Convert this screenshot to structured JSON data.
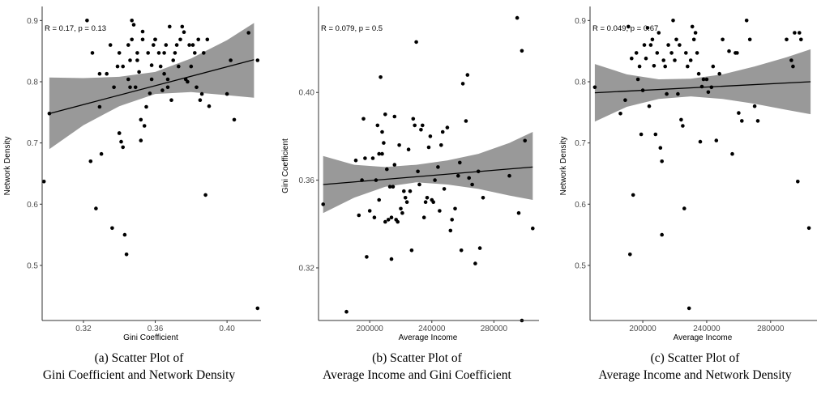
{
  "chart_data": [
    {
      "type": "scatter",
      "title": "",
      "annotation": "R = 0.17, p = 0.13",
      "xlabel": "Gini Coefficient",
      "ylabel": "Network Density",
      "xlim": [
        0.297,
        0.418
      ],
      "ylim": [
        0.41,
        0.915
      ],
      "xticks": [
        0.32,
        0.36,
        0.4
      ],
      "xtick_labels": [
        "0.32",
        "0.36",
        "0.40"
      ],
      "yticks": [
        0.5,
        0.6,
        0.7,
        0.8,
        0.9
      ],
      "ytick_labels": [
        "0.5",
        "0.6",
        "0.7",
        "0.8",
        "0.9"
      ],
      "grid": false,
      "fit": {
        "x0": 0.301,
        "y0": 0.748,
        "x1": 0.415,
        "y1": 0.836
      },
      "ci_band": [
        [
          0.301,
          0.69,
          0.807
        ],
        [
          0.32,
          0.729,
          0.806
        ],
        [
          0.34,
          0.76,
          0.808
        ],
        [
          0.36,
          0.78,
          0.816
        ],
        [
          0.38,
          0.783,
          0.838
        ],
        [
          0.4,
          0.778,
          0.868
        ],
        [
          0.415,
          0.774,
          0.896
        ]
      ],
      "points": [
        [
          0.298,
          0.637
        ],
        [
          0.301,
          0.748
        ],
        [
          0.322,
          0.9
        ],
        [
          0.324,
          0.67
        ],
        [
          0.325,
          0.847
        ],
        [
          0.327,
          0.593
        ],
        [
          0.329,
          0.759
        ],
        [
          0.329,
          0.813
        ],
        [
          0.33,
          0.682
        ],
        [
          0.333,
          0.813
        ],
        [
          0.335,
          0.86
        ],
        [
          0.336,
          0.561
        ],
        [
          0.337,
          0.791
        ],
        [
          0.339,
          0.825
        ],
        [
          0.34,
          0.847
        ],
        [
          0.34,
          0.716
        ],
        [
          0.34,
          0.716
        ],
        [
          0.341,
          0.702
        ],
        [
          0.342,
          0.693
        ],
        [
          0.342,
          0.825
        ],
        [
          0.343,
          0.55
        ],
        [
          0.344,
          0.518
        ],
        [
          0.345,
          0.86
        ],
        [
          0.345,
          0.804
        ],
        [
          0.346,
          0.835
        ],
        [
          0.346,
          0.791
        ],
        [
          0.347,
          0.9
        ],
        [
          0.347,
          0.869
        ],
        [
          0.348,
          0.893
        ],
        [
          0.349,
          0.791
        ],
        [
          0.35,
          0.835
        ],
        [
          0.35,
          0.847
        ],
        [
          0.351,
          0.816
        ],
        [
          0.352,
          0.738
        ],
        [
          0.352,
          0.704
        ],
        [
          0.353,
          0.882
        ],
        [
          0.353,
          0.869
        ],
        [
          0.354,
          0.728
        ],
        [
          0.355,
          0.759
        ],
        [
          0.356,
          0.847
        ],
        [
          0.357,
          0.781
        ],
        [
          0.358,
          0.827
        ],
        [
          0.358,
          0.804
        ],
        [
          0.359,
          0.86
        ],
        [
          0.36,
          0.869
        ],
        [
          0.36,
          0.869
        ],
        [
          0.362,
          0.847
        ],
        [
          0.363,
          0.825
        ],
        [
          0.364,
          0.786
        ],
        [
          0.365,
          0.847
        ],
        [
          0.365,
          0.813
        ],
        [
          0.366,
          0.86
        ],
        [
          0.367,
          0.791
        ],
        [
          0.367,
          0.804
        ],
        [
          0.368,
          0.89
        ],
        [
          0.369,
          0.77
        ],
        [
          0.37,
          0.835
        ],
        [
          0.371,
          0.847
        ],
        [
          0.372,
          0.86
        ],
        [
          0.373,
          0.825
        ],
        [
          0.374,
          0.869
        ],
        [
          0.375,
          0.89
        ],
        [
          0.376,
          0.881
        ],
        [
          0.377,
          0.804
        ],
        [
          0.378,
          0.8
        ],
        [
          0.379,
          0.86
        ],
        [
          0.38,
          0.825
        ],
        [
          0.381,
          0.86
        ],
        [
          0.382,
          0.847
        ],
        [
          0.383,
          0.791
        ],
        [
          0.384,
          0.869
        ],
        [
          0.385,
          0.77
        ],
        [
          0.386,
          0.78
        ],
        [
          0.387,
          0.847
        ],
        [
          0.388,
          0.615
        ],
        [
          0.389,
          0.869
        ],
        [
          0.39,
          0.76
        ],
        [
          0.4,
          0.78
        ],
        [
          0.402,
          0.835
        ],
        [
          0.404,
          0.738
        ],
        [
          0.412,
          0.88
        ],
        [
          0.417,
          0.835
        ],
        [
          0.417,
          0.43
        ]
      ]
    },
    {
      "type": "scatter",
      "title": "",
      "annotation": "R = 0.079, p = 0.5",
      "xlabel": "Average Income",
      "ylabel": "Gini Coefficient",
      "xlim": [
        167000,
        308000
      ],
      "ylim": [
        0.296,
        0.437
      ],
      "xticks": [
        200000,
        240000,
        280000
      ],
      "xtick_labels": [
        "200000",
        "240000",
        "280000"
      ],
      "yticks": [
        0.32,
        0.36,
        0.4
      ],
      "ytick_labels": [
        "0.32",
        "0.36",
        "0.40"
      ],
      "grid": false,
      "fit": {
        "x0": 170000,
        "y0": 0.358,
        "x1": 305000,
        "y1": 0.366
      },
      "ci_band": [
        [
          170000,
          0.345,
          0.371
        ],
        [
          190000,
          0.352,
          0.367
        ],
        [
          210000,
          0.357,
          0.366
        ],
        [
          230000,
          0.359,
          0.367
        ],
        [
          250000,
          0.358,
          0.369
        ],
        [
          270000,
          0.356,
          0.372
        ],
        [
          290000,
          0.353,
          0.377
        ],
        [
          305000,
          0.351,
          0.382
        ]
      ],
      "points": [
        [
          170000,
          0.349
        ],
        [
          185000,
          0.3
        ],
        [
          191000,
          0.369
        ],
        [
          193000,
          0.344
        ],
        [
          195000,
          0.36
        ],
        [
          196000,
          0.388
        ],
        [
          197000,
          0.37
        ],
        [
          198000,
          0.325
        ],
        [
          200000,
          0.346
        ],
        [
          202000,
          0.37
        ],
        [
          203000,
          0.343
        ],
        [
          204000,
          0.36
        ],
        [
          205000,
          0.385
        ],
        [
          206000,
          0.372
        ],
        [
          206000,
          0.351
        ],
        [
          207000,
          0.407
        ],
        [
          208000,
          0.382
        ],
        [
          208000,
          0.372
        ],
        [
          209000,
          0.377
        ],
        [
          210000,
          0.39
        ],
        [
          210000,
          0.341
        ],
        [
          211000,
          0.365
        ],
        [
          212000,
          0.342
        ],
        [
          213000,
          0.357
        ],
        [
          214000,
          0.343
        ],
        [
          214000,
          0.324
        ],
        [
          215000,
          0.357
        ],
        [
          216000,
          0.389
        ],
        [
          216000,
          0.367
        ],
        [
          217000,
          0.342
        ],
        [
          218000,
          0.341
        ],
        [
          219000,
          0.376
        ],
        [
          220000,
          0.347
        ],
        [
          221000,
          0.345
        ],
        [
          222000,
          0.355
        ],
        [
          223000,
          0.352
        ],
        [
          224000,
          0.35
        ],
        [
          225000,
          0.374
        ],
        [
          226000,
          0.355
        ],
        [
          227000,
          0.328
        ],
        [
          228000,
          0.388
        ],
        [
          229000,
          0.385
        ],
        [
          230000,
          0.423
        ],
        [
          231000,
          0.364
        ],
        [
          232000,
          0.358
        ],
        [
          233000,
          0.383
        ],
        [
          234000,
          0.385
        ],
        [
          235000,
          0.343
        ],
        [
          236000,
          0.35
        ],
        [
          237000,
          0.352
        ],
        [
          238000,
          0.375
        ],
        [
          239000,
          0.38
        ],
        [
          240000,
          0.351
        ],
        [
          241000,
          0.35
        ],
        [
          242000,
          0.36
        ],
        [
          244000,
          0.366
        ],
        [
          245000,
          0.346
        ],
        [
          246000,
          0.376
        ],
        [
          247000,
          0.382
        ],
        [
          248000,
          0.356
        ],
        [
          250000,
          0.384
        ],
        [
          252000,
          0.337
        ],
        [
          253000,
          0.342
        ],
        [
          255000,
          0.347
        ],
        [
          257000,
          0.362
        ],
        [
          258000,
          0.368
        ],
        [
          259000,
          0.328
        ],
        [
          260000,
          0.404
        ],
        [
          262000,
          0.387
        ],
        [
          263000,
          0.408
        ],
        [
          264000,
          0.361
        ],
        [
          266000,
          0.358
        ],
        [
          268000,
          0.322
        ],
        [
          270000,
          0.364
        ],
        [
          271000,
          0.329
        ],
        [
          273000,
          0.352
        ],
        [
          290000,
          0.362
        ],
        [
          295000,
          0.434
        ],
        [
          296000,
          0.345
        ],
        [
          298000,
          0.419
        ],
        [
          298000,
          0.296
        ],
        [
          300000,
          0.378
        ],
        [
          305000,
          0.338
        ]
      ]
    },
    {
      "type": "scatter",
      "title": "",
      "annotation": "R = 0.049, p = 0.67",
      "xlabel": "Average Income",
      "ylabel": "Network Density",
      "xlim": [
        167000,
        308000
      ],
      "ylim": [
        0.41,
        0.915
      ],
      "xticks": [
        200000,
        240000,
        280000
      ],
      "xtick_labels": [
        "200000",
        "240000",
        "280000"
      ],
      "yticks": [
        0.5,
        0.6,
        0.7,
        0.8,
        0.9
      ],
      "ytick_labels": [
        "0.5",
        "0.6",
        "0.7",
        "0.8",
        "0.9"
      ],
      "grid": false,
      "fit": {
        "x0": 170000,
        "y0": 0.782,
        "x1": 305000,
        "y1": 0.8
      },
      "ci_band": [
        [
          170000,
          0.735,
          0.829
        ],
        [
          190000,
          0.759,
          0.812
        ],
        [
          210000,
          0.772,
          0.804
        ],
        [
          230000,
          0.776,
          0.805
        ],
        [
          250000,
          0.772,
          0.812
        ],
        [
          270000,
          0.764,
          0.825
        ],
        [
          290000,
          0.754,
          0.84
        ],
        [
          305000,
          0.747,
          0.853
        ]
      ],
      "points": [
        [
          170000,
          0.791
        ],
        [
          186000,
          0.748
        ],
        [
          189000,
          0.77
        ],
        [
          191000,
          0.89
        ],
        [
          192000,
          0.518
        ],
        [
          193000,
          0.838
        ],
        [
          194000,
          0.615
        ],
        [
          196000,
          0.847
        ],
        [
          197000,
          0.804
        ],
        [
          198000,
          0.825
        ],
        [
          199000,
          0.714
        ],
        [
          200000,
          0.786
        ],
        [
          201000,
          0.86
        ],
        [
          202000,
          0.838
        ],
        [
          203000,
          0.888
        ],
        [
          204000,
          0.76
        ],
        [
          205000,
          0.86
        ],
        [
          206000,
          0.869
        ],
        [
          207000,
          0.826
        ],
        [
          208000,
          0.714
        ],
        [
          209000,
          0.847
        ],
        [
          210000,
          0.88
        ],
        [
          211000,
          0.692
        ],
        [
          212000,
          0.67
        ],
        [
          212000,
          0.55
        ],
        [
          213000,
          0.835
        ],
        [
          214000,
          0.825
        ],
        [
          215000,
          0.78
        ],
        [
          216000,
          0.86
        ],
        [
          218000,
          0.847
        ],
        [
          219000,
          0.9
        ],
        [
          220000,
          0.835
        ],
        [
          221000,
          0.869
        ],
        [
          222000,
          0.78
        ],
        [
          223000,
          0.86
        ],
        [
          224000,
          0.738
        ],
        [
          225000,
          0.728
        ],
        [
          226000,
          0.593
        ],
        [
          227000,
          0.847
        ],
        [
          228000,
          0.825
        ],
        [
          229000,
          0.43
        ],
        [
          230000,
          0.835
        ],
        [
          231000,
          0.89
        ],
        [
          232000,
          0.869
        ],
        [
          233000,
          0.88
        ],
        [
          234000,
          0.847
        ],
        [
          235000,
          0.813
        ],
        [
          236000,
          0.702
        ],
        [
          237000,
          0.792
        ],
        [
          238000,
          0.804
        ],
        [
          240000,
          0.804
        ],
        [
          241000,
          0.783
        ],
        [
          243000,
          0.791
        ],
        [
          244000,
          0.825
        ],
        [
          246000,
          0.704
        ],
        [
          248000,
          0.813
        ],
        [
          250000,
          0.869
        ],
        [
          254000,
          0.85
        ],
        [
          256000,
          0.682
        ],
        [
          258000,
          0.847
        ],
        [
          259000,
          0.847
        ],
        [
          260000,
          0.749
        ],
        [
          262000,
          0.736
        ],
        [
          265000,
          0.9
        ],
        [
          267000,
          0.869
        ],
        [
          270000,
          0.76
        ],
        [
          272000,
          0.736
        ],
        [
          290000,
          0.869
        ],
        [
          293000,
          0.835
        ],
        [
          294000,
          0.825
        ],
        [
          295000,
          0.88
        ],
        [
          297000,
          0.637
        ],
        [
          298000,
          0.88
        ],
        [
          299000,
          0.869
        ],
        [
          304000,
          0.561
        ]
      ]
    }
  ],
  "captions": [
    {
      "line1": "(a)  Scatter Plot of",
      "line2": "Gini Coefficient and Network Density"
    },
    {
      "line1": "(b)  Scatter Plot of",
      "line2": "Average Income and Gini Coefficient"
    },
    {
      "line1": "(c)  Scatter Plot of",
      "line2": "Average Income and Network Density"
    }
  ],
  "colors": {
    "points": "#000000",
    "band": "#999999",
    "line": "#000000",
    "axis": "#333333",
    "tick_text": "#4d4d4d"
  }
}
